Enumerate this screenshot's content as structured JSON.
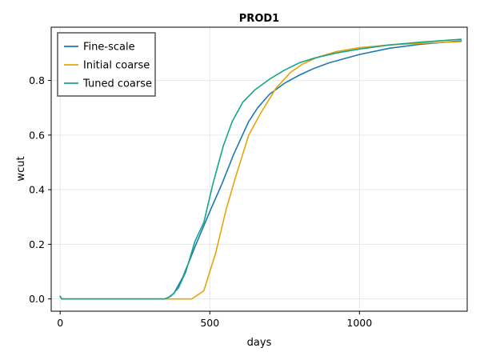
{
  "chart_data": {
    "type": "line",
    "title": "PROD1",
    "xlabel": "days",
    "ylabel": "wcut",
    "xlim": [
      -30,
      1360
    ],
    "ylim": [
      -0.045,
      0.995
    ],
    "xticks": [
      0,
      500,
      1000
    ],
    "yticks": [
      0.0,
      0.2,
      0.4,
      0.6,
      0.8
    ],
    "ytick_labels": [
      "0.0",
      "0.2",
      "0.4",
      "0.6",
      "0.8"
    ],
    "grid": true,
    "legend_position": "top-left",
    "series": [
      {
        "name": "Fine-scale",
        "color": "#1f77b4",
        "points": [
          [
            0,
            0.01
          ],
          [
            5,
            0
          ],
          [
            100,
            0
          ],
          [
            200,
            0
          ],
          [
            300,
            0
          ],
          [
            355,
            0
          ],
          [
            380,
            0.02
          ],
          [
            410,
            0.08
          ],
          [
            450,
            0.19
          ],
          [
            500,
            0.32
          ],
          [
            540,
            0.42
          ],
          [
            580,
            0.53
          ],
          [
            630,
            0.65
          ],
          [
            660,
            0.7
          ],
          [
            700,
            0.75
          ],
          [
            750,
            0.79
          ],
          [
            800,
            0.82
          ],
          [
            850,
            0.845
          ],
          [
            900,
            0.865
          ],
          [
            1000,
            0.895
          ],
          [
            1100,
            0.918
          ],
          [
            1200,
            0.932
          ],
          [
            1340,
            0.945
          ]
        ]
      },
      {
        "name": "Initial coarse",
        "color": "#e5a50a",
        "points": [
          [
            0,
            0.01
          ],
          [
            5,
            0
          ],
          [
            100,
            0
          ],
          [
            200,
            0
          ],
          [
            300,
            0
          ],
          [
            355,
            0
          ],
          [
            440,
            0
          ],
          [
            480,
            0.03
          ],
          [
            520,
            0.17
          ],
          [
            555,
            0.33
          ],
          [
            590,
            0.46
          ],
          [
            630,
            0.6
          ],
          [
            670,
            0.68
          ],
          [
            720,
            0.77
          ],
          [
            770,
            0.83
          ],
          [
            810,
            0.86
          ],
          [
            860,
            0.885
          ],
          [
            920,
            0.905
          ],
          [
            1000,
            0.92
          ],
          [
            1100,
            0.93
          ],
          [
            1200,
            0.936
          ],
          [
            1340,
            0.942
          ]
        ]
      },
      {
        "name": "Tuned coarse",
        "color": "#17a589",
        "points": [
          [
            0,
            0.01
          ],
          [
            5,
            0
          ],
          [
            100,
            0
          ],
          [
            200,
            0
          ],
          [
            300,
            0
          ],
          [
            350,
            0
          ],
          [
            370,
            0.01
          ],
          [
            395,
            0.04
          ],
          [
            420,
            0.1
          ],
          [
            450,
            0.21
          ],
          [
            480,
            0.28
          ],
          [
            510,
            0.42
          ],
          [
            545,
            0.56
          ],
          [
            575,
            0.65
          ],
          [
            610,
            0.72
          ],
          [
            650,
            0.765
          ],
          [
            700,
            0.805
          ],
          [
            750,
            0.838
          ],
          [
            800,
            0.865
          ],
          [
            850,
            0.882
          ],
          [
            920,
            0.9
          ],
          [
            1000,
            0.915
          ],
          [
            1100,
            0.93
          ],
          [
            1200,
            0.94
          ],
          [
            1340,
            0.951
          ]
        ]
      }
    ]
  }
}
